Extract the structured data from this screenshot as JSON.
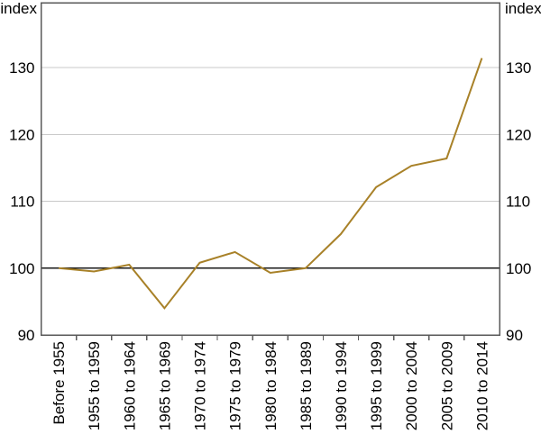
{
  "chart_data": {
    "type": "line",
    "title": "",
    "unit_label_left": "index",
    "unit_label_right": "index",
    "categories": [
      "Before 1955",
      "1955 to 1959",
      "1960 to 1964",
      "1965 to 1969",
      "1970 to 1974",
      "1975 to 1979",
      "1980 to 1984",
      "1985 to 1989",
      "1990 to 1994",
      "1995 to 1999",
      "2000 to 2004",
      "2005 to 2009",
      "2010 to 2014"
    ],
    "series": [
      {
        "name": "index",
        "values": [
          100.0,
          99.5,
          100.5,
          94.0,
          100.8,
          102.4,
          99.3,
          100.0,
          105.1,
          112.1,
          115.3,
          116.4,
          131.4
        ]
      }
    ],
    "yticks": [
      90,
      100,
      110,
      120,
      130
    ],
    "ylim": [
      90,
      139.7
    ],
    "reference_line": 100,
    "grid": "horizontal",
    "legend": "none",
    "ytick_labels_both_sides": true,
    "colors": {
      "line": "#A88128",
      "grid": "#C9C9C9",
      "frame": "#595959",
      "reference": "#1A1A1A",
      "text": "#000000"
    }
  }
}
